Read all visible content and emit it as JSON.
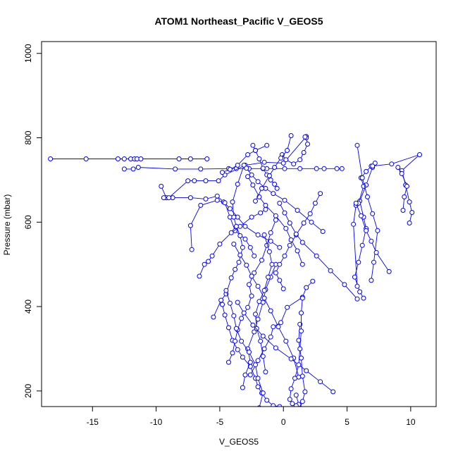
{
  "chart_data": {
    "type": "line",
    "title": "ATOM1 Northeast_Pacific V_GEOS5",
    "xlabel": "V_GEOS5",
    "ylabel": "Pressure (mbar)",
    "xlim": [
      -19,
      12
    ],
    "ylim": [
      1028,
      163
    ],
    "y_reversed": true,
    "x_ticks": [
      -15,
      -10,
      -5,
      0,
      5,
      10
    ],
    "y_ticks": [
      200,
      400,
      600,
      800,
      1000
    ],
    "series_color": "#0000ff",
    "marker": "open-circle",
    "series": [
      {
        "x": [
          -18.3,
          -15.5,
          -13.0,
          -12.5,
          -12.0,
          -11.7,
          -11.5,
          -11.2,
          -8.2,
          -7.3,
          -6.0
        ],
        "y": [
          750,
          750,
          750,
          750,
          750,
          750,
          750,
          750,
          750,
          750,
          750
        ]
      },
      {
        "x": [
          -12.5,
          -11.8,
          -11.4,
          -8.5,
          -6.5,
          -4.3,
          -3.7,
          -2.7,
          -1.6,
          -1.3,
          0.1,
          1.3,
          2.6,
          3.2,
          4.2,
          4.6
        ],
        "y": [
          726,
          726,
          730,
          726,
          726,
          727,
          727,
          727,
          727,
          727,
          727,
          727,
          727,
          727,
          727,
          727
        ]
      },
      {
        "x": [
          -9.6,
          -9.2,
          -8.7,
          -7.3,
          -6.1,
          -5.2,
          -4.7,
          -4.2,
          -3.6,
          -3.0,
          -2.0,
          -1.0,
          -0.3
        ],
        "y": [
          685,
          658,
          658,
          658,
          655,
          662,
          648,
          632,
          612,
          590,
          570,
          555,
          540
        ]
      },
      {
        "x": [
          -9.4,
          -9.0,
          -7.5,
          -7.0,
          -6.1,
          -5.1,
          -4.6,
          -3.0,
          -1.5,
          0.0,
          1.8
        ],
        "y": [
          658,
          658,
          698,
          698,
          698,
          698,
          712,
          735,
          742,
          740,
          803
        ]
      },
      {
        "x": [
          -7.2,
          -7.3,
          -6.5,
          -5.2,
          -4.6,
          -4.2,
          -3.8,
          -3.0,
          -2.6,
          -2.3
        ],
        "y": [
          535,
          592,
          640,
          652,
          646,
          612,
          580,
          560,
          540,
          520
        ]
      },
      {
        "x": [
          -6.6,
          -6.2,
          -5.9,
          -5.6,
          -5.0,
          -4.1,
          -3.4,
          -2.5,
          -1.8,
          -1.4
        ],
        "y": [
          472,
          500,
          507,
          520,
          548,
          575,
          590,
          612,
          622,
          630
        ]
      },
      {
        "x": [
          -5.5,
          -4.9,
          -4.5,
          -4.1,
          -3.8,
          -3.5,
          -3.2,
          -3.4,
          -3.7,
          -3.9,
          -4.0,
          -3.6,
          -3.1
        ],
        "y": [
          375,
          415,
          430,
          468,
          488,
          505,
          540,
          568,
          590,
          612,
          648,
          690,
          735
        ]
      },
      {
        "x": [
          -4.8,
          -4.6,
          -4.3,
          -4.0,
          -3.6,
          -3.2,
          -2.6,
          -2.2,
          -2.0,
          -1.7,
          -1.3,
          -0.8,
          -0.3
        ],
        "y": [
          405,
          380,
          350,
          320,
          298,
          280,
          258,
          230,
          210,
          195,
          178,
          165,
          163
        ]
      },
      {
        "x": [
          -4.3,
          -4.0,
          -3.8,
          -3.6,
          -3.3,
          -2.8,
          -2.5,
          -2.7,
          -2.3,
          -1.7,
          -1.3,
          -1.0,
          -0.6
        ],
        "y": [
          268,
          290,
          318,
          345,
          372,
          398,
          425,
          452,
          480,
          510,
          545,
          575,
          605
        ]
      },
      {
        "x": [
          -3.2,
          -3.0,
          -2.6,
          -2.8,
          -2.3,
          -2.0,
          -1.6,
          -1.4,
          -1.0,
          -0.6
        ],
        "y": [
          208,
          238,
          268,
          300,
          340,
          370,
          410,
          440,
          470,
          500
        ]
      },
      {
        "x": [
          -1.4,
          -1.6,
          -1.8,
          -2.1,
          -2.2,
          -1.9,
          -1.5,
          -1.2,
          -0.9,
          -1.1,
          -1.5
        ],
        "y": [
          245,
          282,
          318,
          348,
          382,
          412,
          438,
          470,
          500,
          530,
          570
        ]
      },
      {
        "x": [
          -2.6,
          -2.0,
          -1.5,
          -1.0,
          -0.8,
          -0.2,
          0.3,
          1.5,
          1.8,
          2.3
        ],
        "y": [
          238,
          272,
          300,
          328,
          352,
          362,
          398,
          422,
          445,
          460
        ]
      },
      {
        "x": [
          -1.9,
          -1.6,
          -2.0,
          -2.2,
          -2.7,
          -3.3,
          -3.7,
          -3.9,
          -4.2,
          -4.5
        ],
        "y": [
          160,
          195,
          230,
          262,
          292,
          318,
          348,
          378,
          408,
          438
        ]
      },
      {
        "x": [
          1.2,
          0.8,
          0.2,
          -0.4,
          -1.0,
          -1.5,
          -2.0,
          -2.5,
          -2.9,
          -3.4,
          -3.9
        ],
        "y": [
          233,
          278,
          318,
          352,
          390,
          420,
          448,
          472,
          498,
          522,
          548
        ]
      },
      {
        "x": [
          3.9,
          2.9,
          1.8,
          0.6,
          -0.6,
          -1.6,
          -2.4,
          -3.1,
          -3.6
        ],
        "y": [
          198,
          222,
          248,
          276,
          302,
          330,
          356,
          385,
          410
        ]
      },
      {
        "x": [
          1.3,
          1.2,
          1.4,
          1.5,
          1.7,
          1.5,
          1.3,
          1.2,
          1.0
        ],
        "y": [
          358,
          320,
          278,
          235,
          198,
          175,
          160,
          168,
          190
        ]
      },
      {
        "x": [
          1.5,
          1.4,
          1.4,
          1.3,
          1.2,
          0.9,
          0.6,
          0.5,
          0.7,
          1.0
        ],
        "y": [
          420,
          385,
          342,
          300,
          262,
          230,
          205,
          180,
          170,
          165
        ]
      },
      {
        "x": [
          0.0,
          -0.3,
          -0.6,
          -0.3,
          0.1,
          0.5,
          1.0,
          1.6,
          2.1,
          2.5,
          2.9
        ],
        "y": [
          442,
          462,
          480,
          500,
          520,
          545,
          570,
          598,
          620,
          645,
          668
        ]
      },
      {
        "x": [
          1.5,
          1.1,
          0.6,
          0.2,
          -0.6,
          -1.4,
          -1.9,
          -2.4,
          -2.8
        ],
        "y": [
          500,
          532,
          558,
          585,
          615,
          640,
          660,
          688,
          708
        ]
      },
      {
        "x": [
          3.1,
          2.2,
          1.1,
          0.1,
          -0.8,
          -1.4,
          -2.0,
          -2.5,
          -2.9
        ],
        "y": [
          578,
          600,
          628,
          652,
          668,
          680,
          696,
          712,
          728
        ]
      },
      {
        "x": [
          5.8,
          4.8,
          3.7,
          2.6,
          1.5,
          1.0,
          0.5,
          0.1,
          -0.3
        ],
        "y": [
          418,
          452,
          485,
          520,
          552,
          572,
          598,
          622,
          645
        ]
      },
      {
        "x": [
          6.3,
          6.0,
          5.6,
          5.9,
          6.2,
          6.5,
          6.3,
          6.0,
          6.5,
          7.0
        ],
        "y": [
          420,
          435,
          470,
          505,
          545,
          585,
          612,
          650,
          688,
          730
        ]
      },
      {
        "x": [
          5.8,
          5.5,
          5.7,
          5.9,
          6.3,
          6.1,
          6.5,
          6.9,
          7.2
        ],
        "y": [
          448,
          595,
          640,
          645,
          685,
          705,
          720,
          733,
          740
        ]
      },
      {
        "x": [
          6.9,
          7.1,
          7.4,
          7.0,
          6.6,
          6.2,
          5.8
        ],
        "y": [
          462,
          505,
          580,
          620,
          660,
          705,
          782
        ]
      },
      {
        "x": [
          8.3,
          7.3,
          6.9,
          6.5,
          6.1,
          5.7
        ],
        "y": [
          483,
          528,
          555,
          580,
          615,
          645
        ]
      },
      {
        "x": [
          9.9,
          10.1,
          9.9,
          9.6,
          9.3,
          10.7,
          8.5,
          7.0
        ],
        "y": [
          598,
          623,
          648,
          688,
          722,
          760,
          738,
          733
        ]
      },
      {
        "x": [
          9.4,
          9.5,
          9.7,
          9.3,
          9.0
        ],
        "y": [
          628,
          660,
          685,
          715,
          730
        ]
      },
      {
        "x": [
          -0.1,
          0.2,
          0.8,
          1.3,
          1.6,
          1.9,
          1.8,
          1.7
        ],
        "y": [
          760,
          748,
          738,
          748,
          765,
          785,
          800,
          802
        ]
      },
      {
        "x": [
          -2.4,
          -2.2,
          -1.9,
          -1.6,
          -1.3,
          -1.0,
          -0.7,
          -0.5
        ],
        "y": [
          782,
          770,
          750,
          728,
          712,
          700,
          690,
          680
        ]
      },
      {
        "x": [
          -4.8,
          -4.2,
          -3.6,
          -2.8,
          -2.2,
          -1.3
        ],
        "y": [
          718,
          725,
          735,
          760,
          770,
          782
        ]
      },
      {
        "x": [
          0.6,
          0.3,
          -0.2,
          -0.7,
          -1.1,
          -1.7,
          -2.2
        ],
        "y": [
          805,
          770,
          752,
          730,
          710,
          680,
          650
        ]
      }
    ]
  }
}
